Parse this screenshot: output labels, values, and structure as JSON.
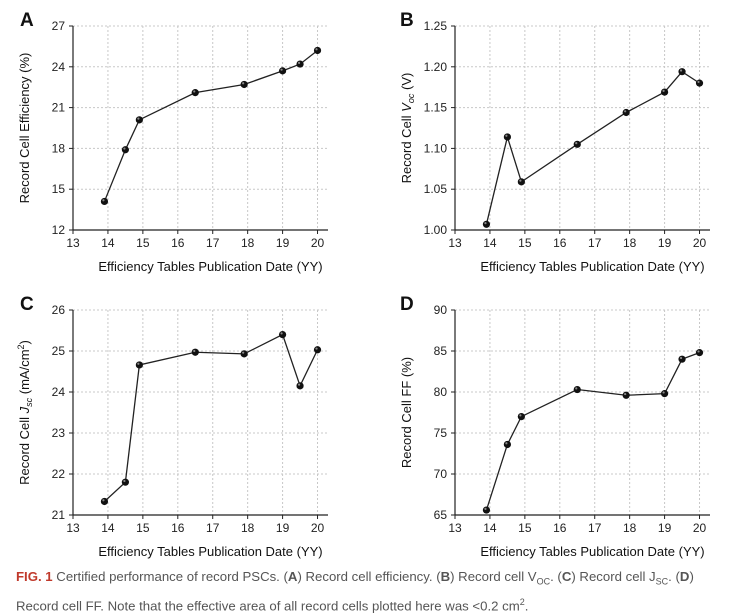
{
  "chart_data": [
    {
      "panel": "A",
      "type": "line",
      "xlabel": "Efficiency Tables Publication Date (YY)",
      "ylabel": "Record Cell Efficiency (%)",
      "xlim": [
        13,
        20.3
      ],
      "ylim": [
        12,
        27
      ],
      "x_ticks": [
        13,
        14,
        15,
        16,
        17,
        18,
        19,
        20
      ],
      "y_ticks": [
        12,
        15,
        18,
        21,
        24,
        27
      ],
      "grid": true,
      "series": [
        {
          "x": [
            13.9,
            14.5,
            14.9,
            16.5,
            17.9,
            19.0,
            19.5,
            20.0
          ],
          "y": [
            14.1,
            17.9,
            20.1,
            22.1,
            22.7,
            23.7,
            24.2,
            25.2
          ]
        }
      ]
    },
    {
      "panel": "B",
      "type": "line",
      "xlabel": "Efficiency Tables Publication Date (YY)",
      "ylabel_parts": [
        "Record Cell ",
        "V",
        "oc",
        " (V)"
      ],
      "xlim": [
        13,
        20.3
      ],
      "ylim": [
        1.0,
        1.25
      ],
      "x_ticks": [
        13,
        14,
        15,
        16,
        17,
        18,
        19,
        20
      ],
      "y_ticks": [
        "1.00",
        "1.05",
        "1.10",
        "1.15",
        "1.20",
        "1.25"
      ],
      "grid": true,
      "series": [
        {
          "x": [
            13.9,
            14.5,
            14.9,
            16.5,
            17.9,
            19.0,
            19.5,
            20.0
          ],
          "y": [
            1.007,
            1.114,
            1.059,
            1.105,
            1.144,
            1.169,
            1.194,
            1.18
          ]
        }
      ]
    },
    {
      "panel": "C",
      "type": "line",
      "xlabel": "Efficiency Tables Publication Date (YY)",
      "ylabel_parts": [
        "Record Cell ",
        "J",
        "sc",
        " (mA/cm",
        "2",
        ")"
      ],
      "xlim": [
        13,
        20.3
      ],
      "ylim": [
        21,
        26
      ],
      "x_ticks": [
        13,
        14,
        15,
        16,
        17,
        18,
        19,
        20
      ],
      "y_ticks": [
        21,
        22,
        23,
        24,
        25,
        26
      ],
      "grid": true,
      "series": [
        {
          "x": [
            13.9,
            14.5,
            14.9,
            16.5,
            17.9,
            19.0,
            19.5,
            20.0
          ],
          "y": [
            21.33,
            21.8,
            24.66,
            24.97,
            24.93,
            25.4,
            24.15,
            25.03
          ]
        }
      ]
    },
    {
      "panel": "D",
      "type": "line",
      "xlabel": "Efficiency Tables Publication Date (YY)",
      "ylabel": "Record Cell FF (%)",
      "xlim": [
        13,
        20.3
      ],
      "ylim": [
        65,
        90
      ],
      "x_ticks": [
        13,
        14,
        15,
        16,
        17,
        18,
        19,
        20
      ],
      "y_ticks": [
        65,
        70,
        75,
        80,
        85,
        90
      ],
      "grid": true,
      "series": [
        {
          "x": [
            13.9,
            14.5,
            14.9,
            16.5,
            17.9,
            19.0,
            19.5,
            20.0
          ],
          "y": [
            65.6,
            73.6,
            77.0,
            80.3,
            79.6,
            79.8,
            84.0,
            84.8
          ]
        }
      ]
    }
  ],
  "caption": {
    "lead": "FIG. 1",
    "t1": " Certified performance of record PSCs. (",
    "a": "A",
    "t2": ") Record cell efficiency. (",
    "b": "B",
    "t3": ") Record cell V",
    "voc_sub": "OC",
    "t4": ". (",
    "c": "C",
    "t5": ") Record cell J",
    "jsc_sub": "SC",
    "t6": ". (",
    "d": "D",
    "t7": ") Record cell FF. Note that the effective area of all record cells plotted here was <0.2 cm",
    "sup": "2",
    "t8": "."
  },
  "colors": {
    "line": "#222222",
    "marker": "#111111",
    "grid": "#c8c8c8",
    "caption_lead": "#c0392b",
    "caption_text": "#555555"
  }
}
